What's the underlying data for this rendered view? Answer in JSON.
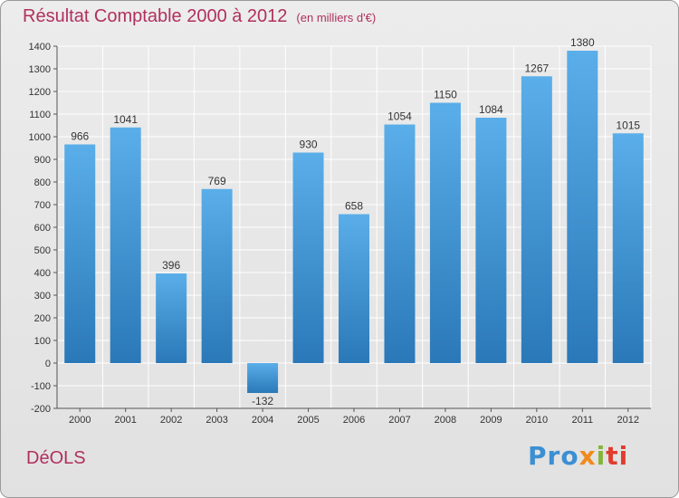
{
  "header": {
    "title": "Résultat Comptable 2000 à 2012",
    "subtitle": "(en milliers d'€)"
  },
  "footer": {
    "commune": "DéOLS",
    "logo_parts": [
      "Pro",
      "x",
      "i",
      "ti"
    ]
  },
  "colors": {
    "bar_top": "#5aaee9",
    "bar_bottom": "#2a78b8",
    "title": "#b0305e",
    "grid": "#ffffff"
  },
  "chart_data": {
    "type": "bar",
    "title": "Résultat Comptable 2000 à 2012",
    "subtitle": "(en milliers d'€)",
    "xlabel": "",
    "ylabel": "",
    "categories": [
      "2000",
      "2001",
      "2002",
      "2003",
      "2004",
      "2005",
      "2006",
      "2007",
      "2008",
      "2009",
      "2010",
      "2011",
      "2012"
    ],
    "values": [
      966,
      1041,
      396,
      769,
      -132,
      930,
      658,
      1054,
      1150,
      1084,
      1267,
      1380,
      1015
    ],
    "ylim": [
      -200,
      1400
    ],
    "yticks": [
      -200,
      -100,
      0,
      100,
      200,
      300,
      400,
      500,
      600,
      700,
      800,
      900,
      1000,
      1100,
      1200,
      1300,
      1400
    ],
    "grid": true
  }
}
